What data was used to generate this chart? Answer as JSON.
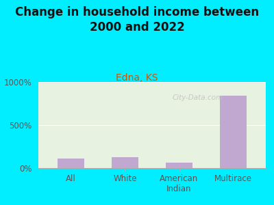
{
  "title": "Change in household income between\n2000 and 2022",
  "subtitle": "Edna, KS",
  "categories": [
    "All",
    "White",
    "American\nIndian",
    "Multirace"
  ],
  "values": [
    115,
    125,
    65,
    840
  ],
  "bar_color": "#c0a8d0",
  "background_color": "#00EEFF",
  "plot_bg_color": "#e8f2e0",
  "yticks": [
    0,
    500,
    1000
  ],
  "ytick_labels": [
    "0%",
    "500%",
    "1000%"
  ],
  "ylim": [
    0,
    1000
  ],
  "watermark": "City-Data.com",
  "title_fontsize": 12,
  "subtitle_fontsize": 10,
  "tick_fontsize": 8.5,
  "title_color": "#111111",
  "subtitle_color": "#cc5500"
}
